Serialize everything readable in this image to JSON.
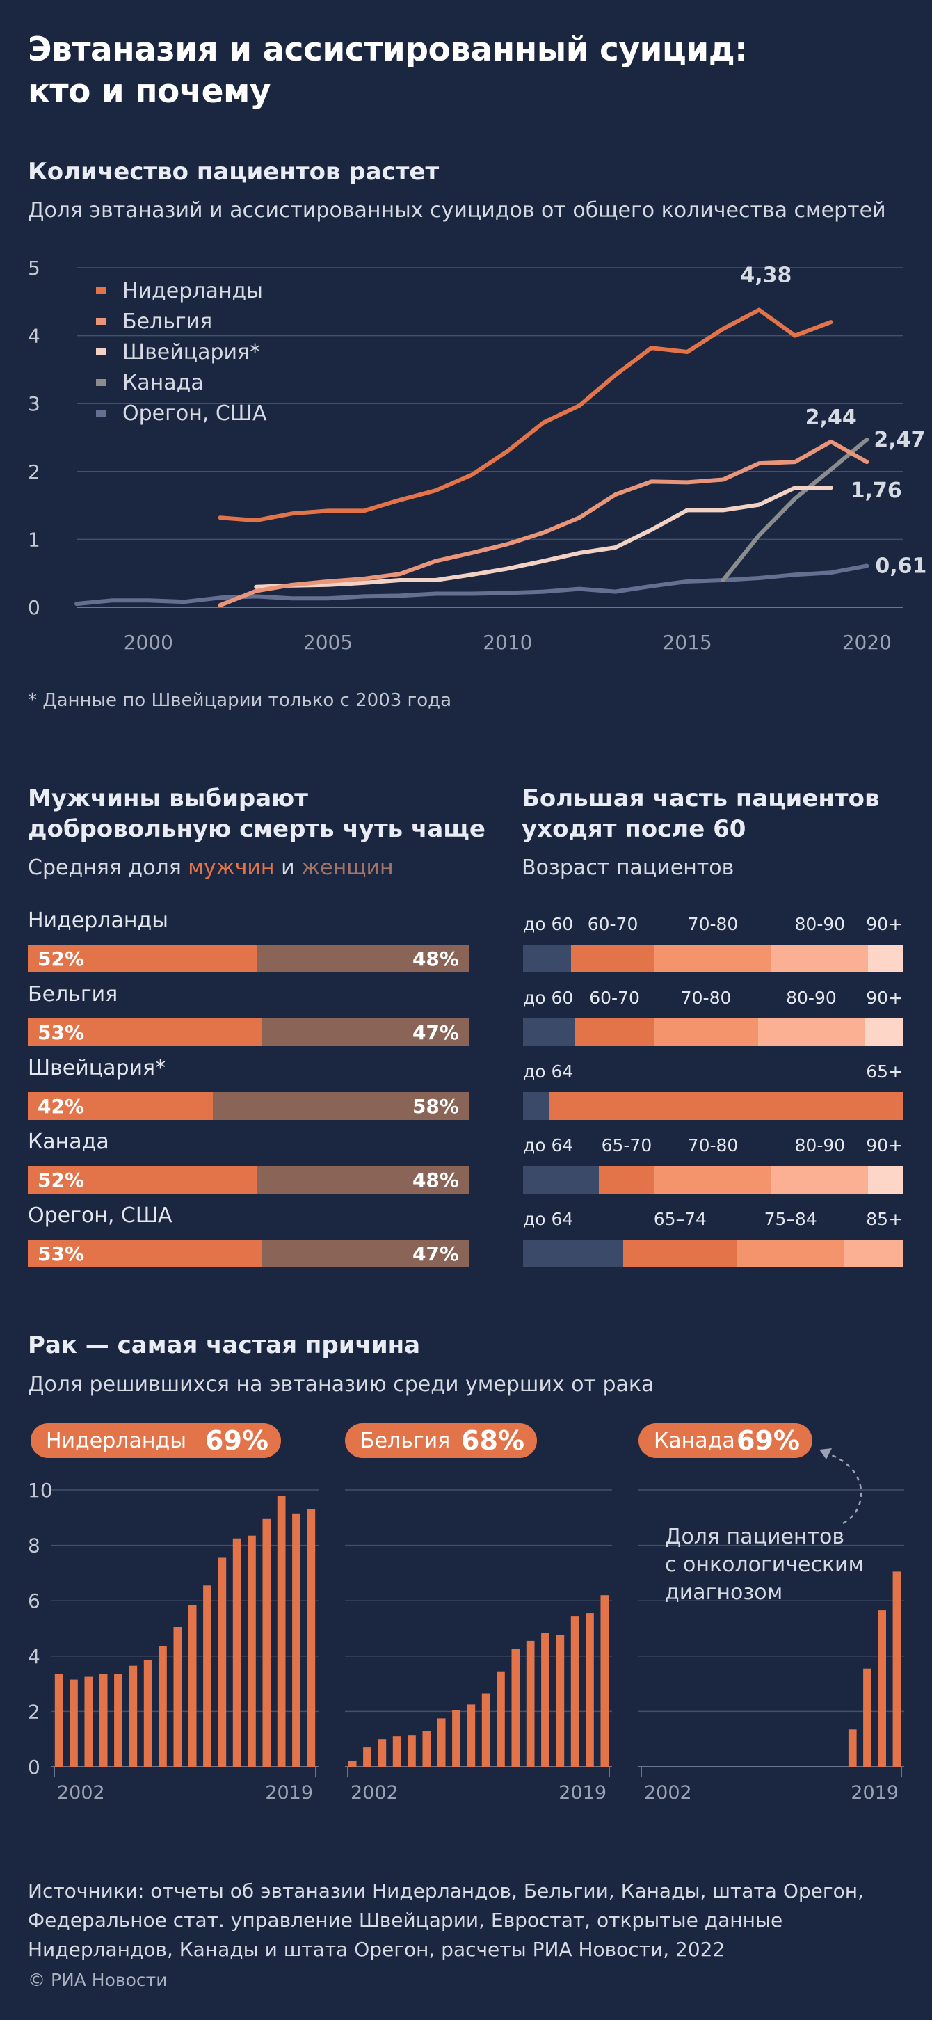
{
  "title_line1": "Эвтаназия и ассистированный суицид:",
  "title_line2": "кто и почему",
  "section1": {
    "heading": "Количество пациентов растет",
    "subheading": "Доля эвтаназий и ассистированных суицидов от общего количества смертей",
    "footnote": "* Данные по Швейцарии только с 2003 года"
  },
  "colors": {
    "background": "#1b2740",
    "netherlands": "#e3744a",
    "belgium": "#e9957a",
    "switzerland": "#f2d2c5",
    "canada": "#8a8c8e",
    "oregon": "#646f91",
    "women": "#8a6557",
    "age_under": "#3b4a68"
  },
  "chart_data": [
    {
      "type": "line",
      "title": "Количество пациентов растет",
      "subtitle": "Доля эвтаназий и ассистированных суицидов от общего количества смертей",
      "ylim": [
        0,
        5
      ],
      "yticks": [
        "0",
        "1",
        "2",
        "3",
        "4",
        "5"
      ],
      "xlim": [
        1998,
        2021
      ],
      "xticks": [
        "2000",
        "2005",
        "2010",
        "2015",
        "2020"
      ],
      "grid": true,
      "legend_position": "top-left",
      "series": [
        {
          "name": "Нидерланды",
          "color": "#e3744a",
          "end_label": "4,38",
          "label_year": 2017,
          "points": [
            [
              2002,
              1.32
            ],
            [
              2003,
              1.28
            ],
            [
              2004,
              1.38
            ],
            [
              2005,
              1.42
            ],
            [
              2006,
              1.42
            ],
            [
              2007,
              1.58
            ],
            [
              2008,
              1.72
            ],
            [
              2009,
              1.95
            ],
            [
              2010,
              2.3
            ],
            [
              2011,
              2.72
            ],
            [
              2012,
              2.97
            ],
            [
              2013,
              3.42
            ],
            [
              2014,
              3.82
            ],
            [
              2015,
              3.76
            ],
            [
              2016,
              4.1
            ],
            [
              2017,
              4.38
            ],
            [
              2018,
              4.0
            ],
            [
              2019,
              4.2
            ]
          ]
        },
        {
          "name": "Бельгия",
          "color": "#e9957a",
          "end_label": "2,44",
          "label_year": 2019,
          "points": [
            [
              2002,
              0.03
            ],
            [
              2003,
              0.24
            ],
            [
              2004,
              0.33
            ],
            [
              2005,
              0.38
            ],
            [
              2006,
              0.42
            ],
            [
              2007,
              0.49
            ],
            [
              2008,
              0.68
            ],
            [
              2009,
              0.8
            ],
            [
              2010,
              0.93
            ],
            [
              2011,
              1.1
            ],
            [
              2012,
              1.32
            ],
            [
              2013,
              1.66
            ],
            [
              2014,
              1.85
            ],
            [
              2015,
              1.84
            ],
            [
              2016,
              1.88
            ],
            [
              2017,
              2.12
            ],
            [
              2018,
              2.14
            ],
            [
              2019,
              2.44
            ],
            [
              2020,
              2.14
            ]
          ]
        },
        {
          "name": "Швейцария*",
          "color": "#f2d2c5",
          "end_label": "1,76",
          "label_year": 2019,
          "points": [
            [
              2003,
              0.3
            ],
            [
              2004,
              0.32
            ],
            [
              2005,
              0.33
            ],
            [
              2006,
              0.36
            ],
            [
              2007,
              0.4
            ],
            [
              2008,
              0.4
            ],
            [
              2009,
              0.48
            ],
            [
              2010,
              0.57
            ],
            [
              2011,
              0.68
            ],
            [
              2012,
              0.8
            ],
            [
              2013,
              0.88
            ],
            [
              2014,
              1.14
            ],
            [
              2015,
              1.43
            ],
            [
              2016,
              1.43
            ],
            [
              2017,
              1.51
            ],
            [
              2018,
              1.76
            ],
            [
              2019,
              1.76
            ]
          ]
        },
        {
          "name": "Канада",
          "color": "#8a8c8e",
          "end_label": "2,47",
          "label_year": 2020,
          "points": [
            [
              2016,
              0.4
            ],
            [
              2017,
              1.06
            ],
            [
              2018,
              1.6
            ],
            [
              2019,
              2.03
            ],
            [
              2020,
              2.47
            ]
          ]
        },
        {
          "name": "Орегон, США",
          "color": "#646f91",
          "end_label": "0,61",
          "label_year": 2020,
          "points": [
            [
              1998,
              0.05
            ],
            [
              1999,
              0.1
            ],
            [
              2000,
              0.1
            ],
            [
              2001,
              0.08
            ],
            [
              2002,
              0.14
            ],
            [
              2003,
              0.16
            ],
            [
              2004,
              0.13
            ],
            [
              2005,
              0.13
            ],
            [
              2006,
              0.16
            ],
            [
              2007,
              0.17
            ],
            [
              2008,
              0.2
            ],
            [
              2009,
              0.2
            ],
            [
              2010,
              0.21
            ],
            [
              2011,
              0.23
            ],
            [
              2012,
              0.27
            ],
            [
              2013,
              0.23
            ],
            [
              2014,
              0.31
            ],
            [
              2015,
              0.38
            ],
            [
              2016,
              0.4
            ],
            [
              2017,
              0.43
            ],
            [
              2018,
              0.48
            ],
            [
              2019,
              0.51
            ],
            [
              2020,
              0.61
            ]
          ]
        }
      ]
    },
    {
      "type": "bar",
      "orientation": "horizontal-stacked",
      "title": "Мужчины выбирают добровольную смерть чуть чаще",
      "categories": [
        "Нидерланды",
        "Бельгия",
        "Швейцария*",
        "Канада",
        "Орегон, США"
      ],
      "series": [
        {
          "name": "мужчин",
          "values": [
            52,
            53,
            42,
            52,
            53
          ],
          "labels": [
            "52%",
            "53%",
            "42%",
            "52%",
            "53%"
          ]
        },
        {
          "name": "женщин",
          "values": [
            48,
            47,
            58,
            48,
            47
          ],
          "labels": [
            "48%",
            "47%",
            "58%",
            "48%",
            "47%"
          ]
        }
      ]
    },
    {
      "type": "bar",
      "orientation": "horizontal-stacked",
      "title": "Большая часть пациентов уходят после 60",
      "categories": [
        "Нидерланды",
        "Бельгия",
        "Швейцария*",
        "Канада",
        "Орегон, США"
      ],
      "rows": [
        {
          "labels": [
            "до 60",
            "60-70",
            "70-80",
            "80-90",
            "90+"
          ],
          "values": [
            7,
            12,
            17,
            14,
            5
          ]
        },
        {
          "labels": [
            "до 60",
            "60-70",
            "70-80",
            "80-90",
            "90+"
          ],
          "values": [
            7.5,
            11.5,
            15,
            15.5,
            5.5
          ]
        },
        {
          "labels": [
            "до 64",
            "65+"
          ],
          "values": [
            7,
            93
          ]
        },
        {
          "labels": [
            "до 64",
            "65-70",
            "70-80",
            "80-90",
            "90+"
          ],
          "values": [
            11,
            8,
            17,
            14,
            5
          ]
        },
        {
          "labels": [
            "до 64",
            "65–74",
            "75–84",
            "85+"
          ],
          "values": [
            14.5,
            16.5,
            15.5,
            8.5
          ]
        }
      ]
    },
    {
      "type": "bar",
      "title": "Рак — самая частая причина",
      "subtitle": "Доля решившихся на эвтаназию среди умерших от рака",
      "ylim": [
        0,
        10
      ],
      "yticks": [
        "0",
        "2",
        "4",
        "6",
        "8",
        "10"
      ],
      "xlim": [
        2002,
        2019
      ],
      "xticks": [
        "2002",
        "2019"
      ],
      "panels": [
        {
          "name": "Нидерланды",
          "share": "69%",
          "years": [
            2002,
            2003,
            2004,
            2005,
            2006,
            2007,
            2008,
            2009,
            2010,
            2011,
            2012,
            2013,
            2014,
            2015,
            2016,
            2017,
            2018,
            2019
          ],
          "values": [
            3.35,
            3.15,
            3.25,
            3.35,
            3.35,
            3.65,
            3.85,
            4.35,
            5.05,
            5.85,
            6.55,
            7.55,
            8.25,
            8.35,
            8.95,
            9.8,
            9.15,
            9.3
          ]
        },
        {
          "name": "Бельгия",
          "share": "68%",
          "years": [
            2002,
            2003,
            2004,
            2005,
            2006,
            2007,
            2008,
            2009,
            2010,
            2011,
            2012,
            2013,
            2014,
            2015,
            2016,
            2017,
            2018,
            2019
          ],
          "values": [
            0.2,
            0.7,
            1.0,
            1.1,
            1.15,
            1.3,
            1.75,
            2.05,
            2.25,
            2.65,
            3.45,
            4.25,
            4.55,
            4.85,
            4.75,
            5.45,
            5.55,
            6.2
          ]
        },
        {
          "name": "Канада",
          "share": "69%",
          "years": [
            2016,
            2017,
            2018,
            2019
          ],
          "values": [
            1.35,
            3.55,
            5.65,
            7.05
          ]
        }
      ]
    }
  ],
  "section2": {
    "heading_line1": "Мужчины выбирают",
    "heading_line2": "добровольную смерть чуть чаще",
    "sub_prefix": "Средняя доля ",
    "sub_men": "мужчин",
    "sub_and": " и ",
    "sub_women": "женщин"
  },
  "section3": {
    "heading_line1": "Большая часть пациентов",
    "heading_line2": "уходят после 60",
    "subheading": "Возраст пациентов"
  },
  "section4": {
    "heading": "Рак — самая частая причина",
    "subheading": "Доля решившихся на эвтаназию среди умерших от рака",
    "annotation_line1": "Доля пациентов",
    "annotation_line2": "с онкологическим",
    "annotation_line3": "диагнозом"
  },
  "footer": {
    "sources": "Источники: отчеты об эвтаназии Нидерландов, Бельгии, Канады, штата Орегон, Федеральное стат. управление Швейцарии, Евростат, открытые данные Нидерландов, Канады и штата Орегон, расчеты РИА Новости, 2022",
    "copyright": "© РИА Новости"
  }
}
